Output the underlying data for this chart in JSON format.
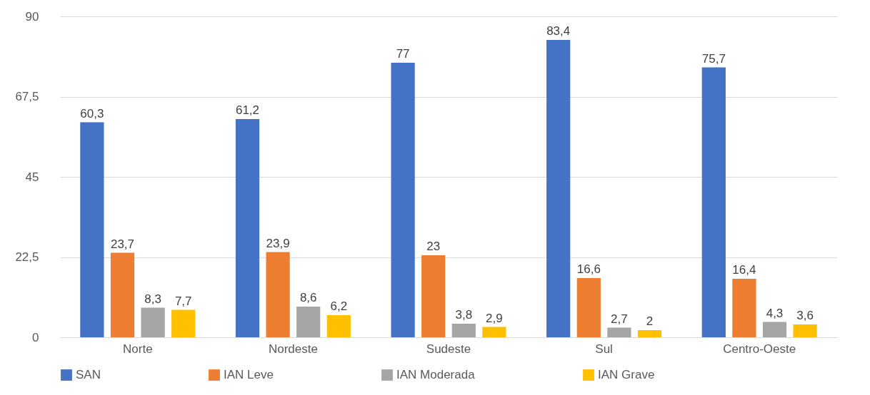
{
  "chart_data": {
    "type": "bar",
    "categories": [
      "Norte",
      "Nordeste",
      "Sudeste",
      "Sul",
      "Centro-Oeste"
    ],
    "series": [
      {
        "name": "SAN",
        "color": "#4472c4",
        "values": [
          60.3,
          61.2,
          77,
          83.4,
          75.7
        ],
        "value_labels": [
          "60,3",
          "61,2",
          "77",
          "83,4",
          "75,7"
        ]
      },
      {
        "name": "IAN Leve",
        "color": "#ed7d31",
        "values": [
          23.7,
          23.9,
          23,
          16.6,
          16.4
        ],
        "value_labels": [
          "23,7",
          "23,9",
          "23",
          "16,6",
          "16,4"
        ]
      },
      {
        "name": "IAN Moderada",
        "color": "#a5a5a5",
        "values": [
          8.3,
          8.6,
          3.8,
          2.7,
          4.3
        ],
        "value_labels": [
          "8,3",
          "8,6",
          "3,8",
          "2,7",
          "4,3"
        ]
      },
      {
        "name": "IAN Grave",
        "color": "#ffc000",
        "values": [
          7.7,
          6.2,
          2.9,
          2,
          3.6
        ],
        "value_labels": [
          "7,7",
          "6,2",
          "2,9",
          "2",
          "3,6"
        ]
      }
    ],
    "ylim": [
      0,
      90
    ],
    "yticks": [
      0,
      {
        "value": 22.5,
        "label": "22,5"
      },
      45,
      {
        "value": 67.5,
        "label": "67,5"
      },
      90
    ],
    "grid": "y",
    "legend": "bottom"
  }
}
